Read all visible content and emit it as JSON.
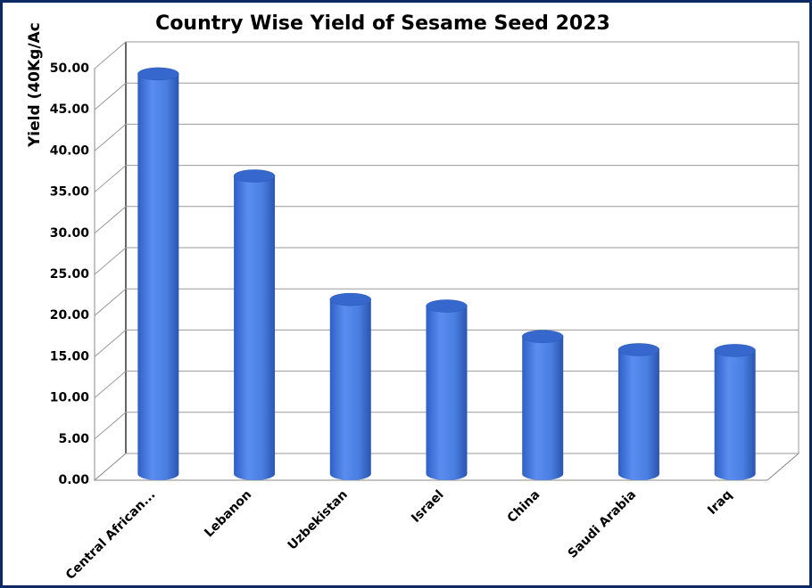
{
  "chart_data": {
    "type": "bar3d-cylinder",
    "title": "Country Wise Yield of Sesame Seed 2023",
    "y_label": "Yield (40Kg/Ac",
    "categories": [
      "Central African...",
      "Lebanon",
      "Uzbekistan",
      "Israel",
      "China",
      "Saudi Arabia",
      "Iraq"
    ],
    "values": [
      48.6,
      36.2,
      21.2,
      20.4,
      16.7,
      15.1,
      15.0
    ],
    "color": "#4a7ee0",
    "ylim": [
      0,
      50
    ],
    "yticks": [
      {
        "value": 0,
        "label": "0.00"
      },
      {
        "value": 5,
        "label": "5.00"
      },
      {
        "value": 10,
        "label": "10.00"
      },
      {
        "value": 15,
        "label": "15.00"
      },
      {
        "value": 20,
        "label": "20.00"
      },
      {
        "value": 25,
        "label": "25.00"
      },
      {
        "value": 30,
        "label": "30.00"
      },
      {
        "value": 35,
        "label": "35.00"
      },
      {
        "value": 40,
        "label": "40.00"
      },
      {
        "value": 45,
        "label": "45.00"
      },
      {
        "value": 50,
        "label": "50.00"
      }
    ],
    "grid": true
  }
}
